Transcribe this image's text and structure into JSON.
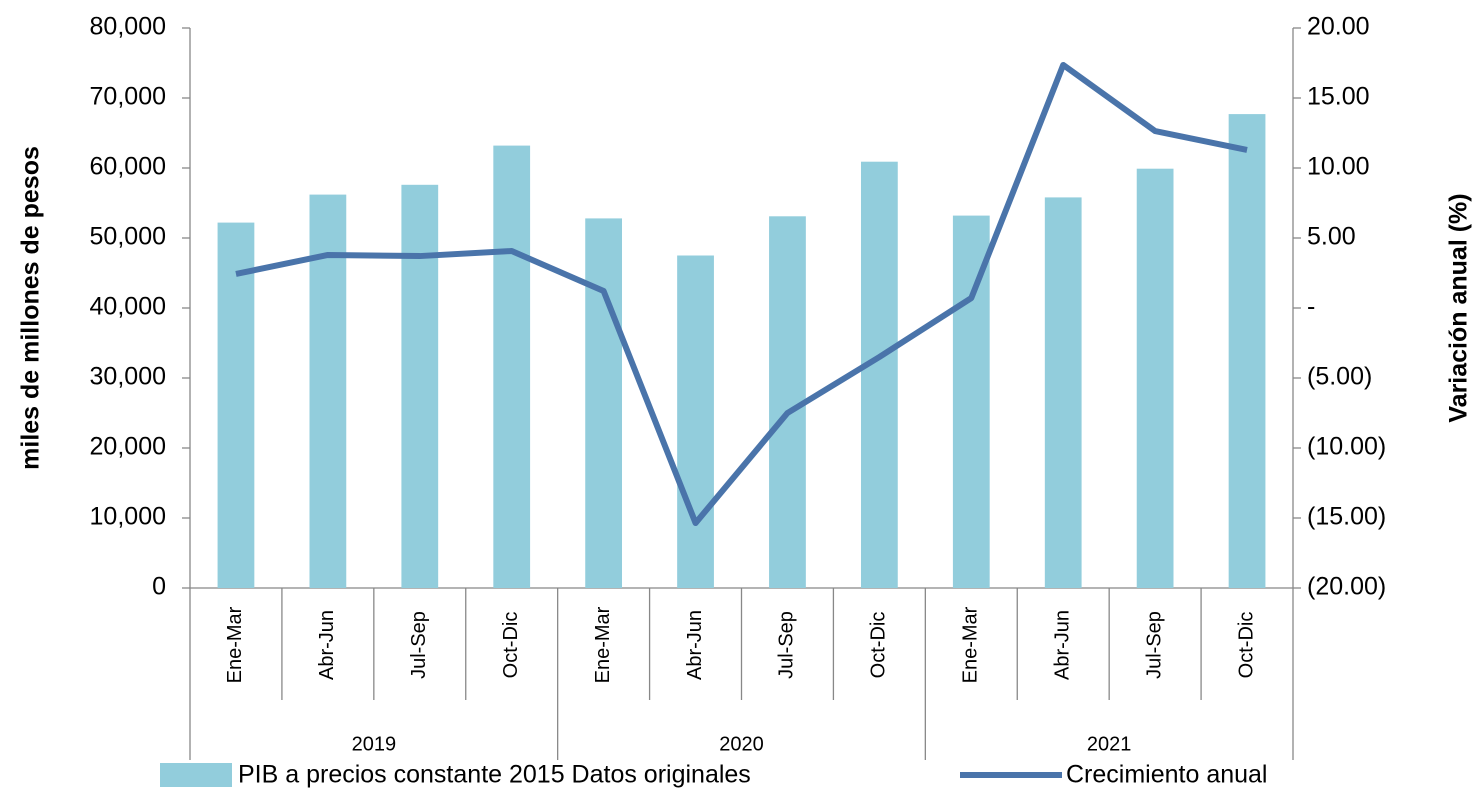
{
  "chart_data": {
    "type": "bar",
    "categories": [
      "Ene-Mar",
      "Abr-Jun",
      "Jul-Sep",
      "Oct-Dic",
      "Ene-Mar",
      "Abr-Jun",
      "Jul-Sep",
      "Oct-Dic",
      "Ene-Mar",
      "Abr-Jun",
      "Jul-Sep",
      "Oct-Dic"
    ],
    "category_groups": [
      "2019",
      "2020",
      "2021"
    ],
    "series": [
      {
        "name": "PIB a precios constante 2015 Datos originales",
        "type": "bar",
        "color": "#92cddc",
        "values": [
          52200,
          56200,
          57600,
          63200,
          52800,
          47500,
          53100,
          60900,
          53200,
          55800,
          59900,
          67700
        ]
      },
      {
        "name": "Crecimiento anual",
        "type": "line",
        "axis": "y2",
        "color": "#4a74aa",
        "values": [
          2.43,
          3.79,
          3.71,
          4.07,
          1.21,
          -15.36,
          -7.5,
          -3.5,
          0.71,
          17.36,
          12.64,
          11.29
        ]
      }
    ],
    "ylabel": "miles de millones de pesos",
    "y2label": "Variación anual (%)",
    "ylim": [
      0,
      80000
    ],
    "yticks": [
      0,
      {
        "value": 10000,
        "label": "10,000"
      },
      {
        "value": 20000,
        "label": "20,000"
      },
      {
        "value": 30000,
        "label": "30,000"
      },
      {
        "value": 40000,
        "label": "40,000"
      },
      {
        "value": 50000,
        "label": "50,000"
      },
      {
        "value": 60000,
        "label": "60,000"
      },
      {
        "value": 70000,
        "label": "70,000"
      },
      {
        "value": 80000,
        "label": "80,000"
      }
    ],
    "y2lim": [
      -20,
      20
    ],
    "y2ticks": [
      {
        "value": -20,
        "label": "(20.00)"
      },
      {
        "value": -15,
        "label": "(15.00)"
      },
      {
        "value": -10,
        "label": "(10.00)"
      },
      {
        "value": -5,
        "label": "(5.00)"
      },
      {
        "value": 0,
        "label": "-"
      },
      {
        "value": 5,
        "label": "5.00"
      },
      {
        "value": 10,
        "label": "10.00"
      },
      {
        "value": 15,
        "label": "15.00"
      },
      {
        "value": 20,
        "label": "20.00"
      }
    ],
    "grid": false,
    "legend": "bottom"
  }
}
